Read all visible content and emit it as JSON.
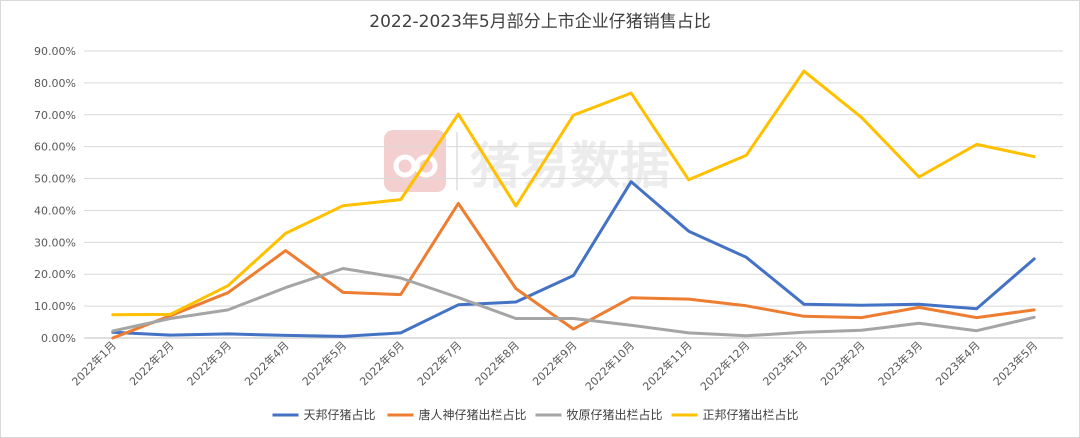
{
  "chart_data": {
    "type": "line",
    "title": "2022-2023年5月部分上市企业仔猪销售占比",
    "xlabel": "",
    "ylabel": "",
    "ylim": [
      0,
      0.9
    ],
    "y_ticks": [
      "0.00%",
      "10.00%",
      "20.00%",
      "30.00%",
      "40.00%",
      "50.00%",
      "60.00%",
      "70.00%",
      "80.00%",
      "90.00%"
    ],
    "grid": true,
    "legend_position": "bottom",
    "categories": [
      "2022年1月",
      "2022年2月",
      "2022年3月",
      "2022年4月",
      "2022年5月",
      "2022年6月",
      "2022年7月",
      "2022年8月",
      "2022年9月",
      "2022年10月",
      "2022年11月",
      "2022年12月",
      "2023年1月",
      "2023年2月",
      "2023年3月",
      "2023年4月",
      "2023年5月"
    ],
    "series": [
      {
        "name": "天邦仔猪占比",
        "color": "#4472c4",
        "values": [
          0.018,
          0.009,
          0.013,
          0.008,
          0.005,
          0.016,
          0.104,
          0.113,
          0.196,
          0.49,
          0.335,
          0.253,
          0.106,
          0.103,
          0.106,
          0.092,
          0.248
        ]
      },
      {
        "name": "唐人神仔猪出栏占比",
        "color": "#ed7d31",
        "values": [
          0.0,
          0.07,
          0.142,
          0.274,
          0.143,
          0.136,
          0.422,
          0.155,
          0.028,
          0.126,
          0.122,
          0.101,
          0.068,
          0.064,
          0.096,
          0.064,
          0.088
        ]
      },
      {
        "name": "牧原仔猪出栏占比",
        "color": "#a5a5a5",
        "values": [
          0.022,
          0.061,
          0.088,
          0.158,
          0.218,
          0.188,
          0.127,
          0.061,
          0.061,
          0.04,
          0.016,
          0.007,
          0.018,
          0.024,
          0.046,
          0.023,
          0.065
        ]
      },
      {
        "name": "正邦仔猪出栏占比",
        "color": "#ffc000",
        "values": [
          0.073,
          0.074,
          0.164,
          0.328,
          0.415,
          0.434,
          0.702,
          0.414,
          0.699,
          0.768,
          0.496,
          0.573,
          0.837,
          0.692,
          0.505,
          0.607,
          0.569
        ]
      }
    ],
    "watermark": "猪易数据"
  }
}
